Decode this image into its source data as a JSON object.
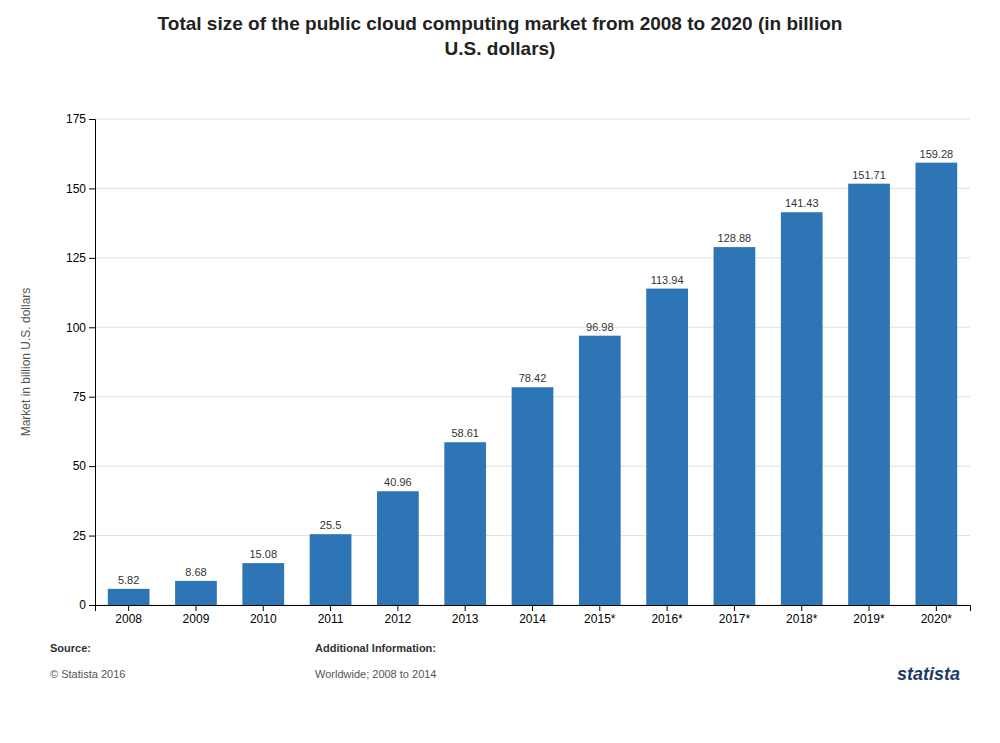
{
  "chart_data": {
    "type": "bar",
    "title": "Total size of the public cloud computing market from 2008 to 2020 (in billion\nU.S. dollars)",
    "categories": [
      "2008",
      "2009",
      "2010",
      "2011",
      "2012",
      "2013",
      "2014",
      "2015*",
      "2016*",
      "2017*",
      "2018*",
      "2019*",
      "2020*"
    ],
    "values": [
      5.82,
      8.68,
      15.08,
      25.5,
      40.96,
      58.61,
      78.42,
      96.98,
      113.94,
      128.88,
      141.43,
      151.71,
      159.28
    ],
    "color": "#2E75B6",
    "ylabel": "Market in billion U.S. dollars",
    "ylim": [
      0,
      175
    ],
    "yticks": [
      0,
      25,
      50,
      75,
      100,
      125,
      150,
      175
    ],
    "grid": true,
    "data_labels": true,
    "annotations": [
      "Source:",
      "© Statista 2016",
      "Additional Information:",
      "Worldwide; 2008 to 2014",
      "statista"
    ]
  }
}
